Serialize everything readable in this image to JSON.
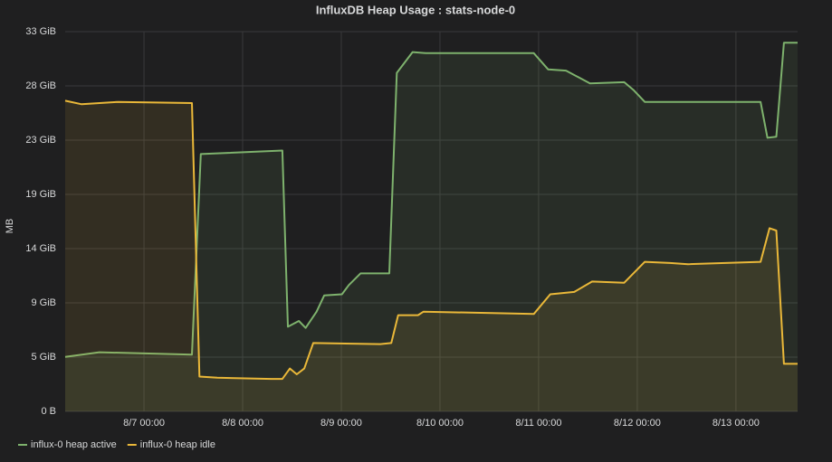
{
  "chart_data": {
    "type": "line",
    "title": "InfluxDB Heap Usage : stats-node-0",
    "y_label": "MB",
    "grid": true,
    "legend": "bottom-left",
    "xlim": [
      "8/6 04:50",
      "8/13 15:00"
    ],
    "xticks": [
      "8/7 00:00",
      "8/8 00:00",
      "8/9 00:00",
      "8/10 00:00",
      "8/11 00:00",
      "8/12 00:00",
      "8/13 00:00"
    ],
    "ylim": [
      0,
      32.76
    ],
    "yticks": [
      {
        "value": 0,
        "label": "0 B"
      },
      {
        "value": 4.68,
        "label": "5 GiB"
      },
      {
        "value": 9.36,
        "label": "9 GiB"
      },
      {
        "value": 14.04,
        "label": "14 GiB"
      },
      {
        "value": 18.72,
        "label": "19 GiB"
      },
      {
        "value": 23.4,
        "label": "23 GiB"
      },
      {
        "value": 28.08,
        "label": "28 GiB"
      },
      {
        "value": 32.76,
        "label": "33 GiB"
      }
    ],
    "series": [
      {
        "name": "influx-0 heap active",
        "color": "#7eb26d",
        "x": [
          "8/6 04:50",
          "8/6 13:10",
          "8/7 11:40",
          "8/7 13:50",
          "8/8 09:40",
          "8/8 11:00",
          "8/8 13:40",
          "8/8 15:20",
          "8/8 18:00",
          "8/8 19:50",
          "8/9 00:10",
          "8/9 01:50",
          "8/9 04:40",
          "8/9 11:40",
          "8/9 13:30",
          "8/9 17:20",
          "8/9 20:30",
          "8/10 22:50",
          "8/11 02:20",
          "8/11 06:40",
          "8/11 09:50",
          "8/11 12:30",
          "8/11 20:50",
          "8/11 23:10",
          "8/12 01:50",
          "8/13 06:00",
          "8/13 07:40",
          "8/13 09:50",
          "8/13 11:40",
          "8/13 15:00"
        ],
        "values": [
          4.7,
          5.1,
          4.9,
          22.2,
          22.5,
          7.3,
          7.8,
          7.2,
          8.6,
          10.0,
          10.1,
          10.9,
          11.9,
          11.9,
          29.2,
          31.0,
          30.9,
          30.9,
          29.5,
          29.4,
          28.8,
          28.3,
          28.4,
          27.7,
          26.7,
          26.7,
          23.6,
          23.7,
          31.8,
          31.8
        ]
      },
      {
        "name": "influx-0 heap idle",
        "color": "#eab839",
        "x": [
          "8/6 04:50",
          "8/6 08:50",
          "8/6 17:40",
          "8/7 11:40",
          "8/7 13:30",
          "8/7 17:50",
          "8/8 07:00",
          "8/8 09:40",
          "8/8 11:30",
          "8/8 13:10",
          "8/8 15:00",
          "8/8 17:10",
          "8/9 09:30",
          "8/9 12:10",
          "8/9 13:50",
          "8/9 18:40",
          "8/9 20:00",
          "8/10 22:50",
          "8/11 02:50",
          "8/11 08:40",
          "8/11 13:00",
          "8/11 20:50",
          "8/12 01:50",
          "8/12 08:00",
          "8/12 12:20",
          "8/13 06:00",
          "8/13 08:10",
          "8/13 09:50",
          "8/13 11:40",
          "8/13 15:00"
        ],
        "values": [
          26.8,
          26.5,
          26.7,
          26.6,
          3.0,
          2.9,
          2.8,
          2.8,
          3.7,
          3.2,
          3.7,
          5.9,
          5.8,
          5.9,
          8.3,
          8.3,
          8.6,
          8.4,
          10.1,
          10.3,
          11.2,
          11.1,
          12.9,
          12.8,
          12.7,
          12.9,
          15.8,
          15.6,
          4.1,
          4.1
        ]
      }
    ]
  }
}
